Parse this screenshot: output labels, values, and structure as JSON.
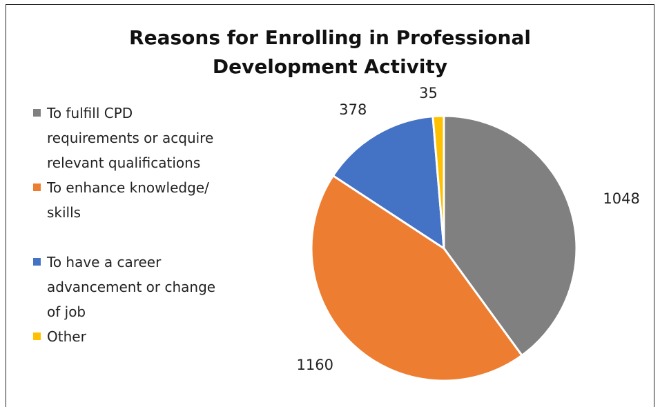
{
  "chart_data": {
    "type": "pie",
    "title_lines": [
      "Reasons for Enrolling in Professional",
      "Development Activity"
    ],
    "categories": [
      "To fulfill CPD requirements or acquire relevant qualifications",
      "To enhance knowledge/ skills",
      "To have a career advancement or change of job",
      "Other"
    ],
    "legend_lines": [
      [
        "To fulfill CPD",
        "requirements or acquire",
        "relevant qualifications"
      ],
      [
        "To enhance knowledge/",
        "skills"
      ],
      [
        "To have a career",
        "advancement or change",
        "of job"
      ],
      [
        "Other"
      ]
    ],
    "values": [
      1048,
      1160,
      378,
      35
    ],
    "data_labels": [
      "1048",
      "1160",
      "378",
      "35"
    ],
    "colors": [
      "#808080",
      "#ED7D31",
      "#4472C4",
      "#FFC000"
    ],
    "legend_position": "left",
    "start_angle_deg": 0,
    "direction": "clockwise"
  }
}
